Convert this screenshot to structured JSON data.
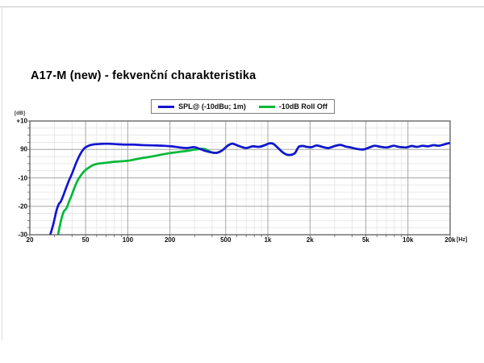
{
  "title": "A17-M (new) - fekvenční charakteristika",
  "chart_data": {
    "type": "line",
    "title": "A17-M (new) - fekvenční charakteristika",
    "legend_position": "top",
    "grid": true,
    "x_axis": {
      "scale": "log",
      "min_hz": 20,
      "max_hz": 20000,
      "unit_label": "[Hz]",
      "ticks": [
        {
          "hz": 20,
          "label": "20"
        },
        {
          "hz": 50,
          "label": "50"
        },
        {
          "hz": 100,
          "label": "100"
        },
        {
          "hz": 200,
          "label": "200"
        },
        {
          "hz": 500,
          "label": "500"
        },
        {
          "hz": 1000,
          "label": "1k"
        },
        {
          "hz": 2000,
          "label": "2k"
        },
        {
          "hz": 5000,
          "label": "5k"
        },
        {
          "hz": 10000,
          "label": "10k"
        },
        {
          "hz": 20000,
          "label": "20k"
        }
      ],
      "minor_ticks_hz": [
        30,
        40,
        60,
        70,
        80,
        90,
        300,
        400,
        600,
        700,
        800,
        900,
        3000,
        4000,
        6000,
        7000,
        8000,
        9000
      ]
    },
    "y_axis": {
      "unit_label": "[dB]",
      "min": 60,
      "max": 100,
      "ticks": [
        {
          "value": 100,
          "label": "+10"
        },
        {
          "value": 90,
          "label": "90"
        },
        {
          "value": 80,
          "label": "-10"
        },
        {
          "value": 70,
          "label": "-20"
        },
        {
          "value": 60,
          "label": "-30"
        }
      ],
      "minor_step_db": 2.5
    },
    "series": [
      {
        "name": "SPL@ (-10dBu; 1m)",
        "color": "#1414d2",
        "points": [
          [
            28,
            60
          ],
          [
            29.5,
            64
          ],
          [
            31,
            68.5
          ],
          [
            32.2,
            70.8
          ],
          [
            33.2,
            71.6
          ],
          [
            34.5,
            73.5
          ],
          [
            36,
            76
          ],
          [
            38,
            79
          ],
          [
            40,
            81.5
          ],
          [
            43,
            85.5
          ],
          [
            46,
            88.5
          ],
          [
            49,
            90.4
          ],
          [
            52,
            91.2
          ],
          [
            56,
            91.7
          ],
          [
            62,
            91.9
          ],
          [
            70,
            92
          ],
          [
            80,
            91.9
          ],
          [
            95,
            91.7
          ],
          [
            110,
            91.7
          ],
          [
            130,
            91.5
          ],
          [
            155,
            91.4
          ],
          [
            180,
            91.3
          ],
          [
            205,
            91.1
          ],
          [
            235,
            90.7
          ],
          [
            265,
            90.5
          ],
          [
            300,
            90.8
          ],
          [
            330,
            90.1
          ],
          [
            375,
            89.2
          ],
          [
            430,
            88.8
          ],
          [
            470,
            89.6
          ],
          [
            520,
            91.4
          ],
          [
            560,
            92
          ],
          [
            630,
            91.1
          ],
          [
            700,
            90.5
          ],
          [
            780,
            91.1
          ],
          [
            860,
            90.9
          ],
          [
            940,
            91.4
          ],
          [
            1020,
            92.1
          ],
          [
            1090,
            92
          ],
          [
            1160,
            90.9
          ],
          [
            1260,
            89.2
          ],
          [
            1360,
            88.2
          ],
          [
            1460,
            88.1
          ],
          [
            1560,
            88.7
          ],
          [
            1660,
            90.9
          ],
          [
            1780,
            91.2
          ],
          [
            1900,
            90.9
          ],
          [
            2050,
            90.8
          ],
          [
            2230,
            91.4
          ],
          [
            2450,
            90.9
          ],
          [
            2700,
            90.5
          ],
          [
            3000,
            91.2
          ],
          [
            3300,
            91.6
          ],
          [
            3600,
            91
          ],
          [
            3900,
            90.7
          ],
          [
            4300,
            90.2
          ],
          [
            4800,
            90
          ],
          [
            5300,
            90.7
          ],
          [
            5800,
            91.3
          ],
          [
            6400,
            90.9
          ],
          [
            7100,
            90.7
          ],
          [
            7900,
            91.3
          ],
          [
            8600,
            90.9
          ],
          [
            9700,
            90.7
          ],
          [
            10600,
            91.2
          ],
          [
            11600,
            90.9
          ],
          [
            12700,
            91.3
          ],
          [
            13900,
            91.1
          ],
          [
            15200,
            91.5
          ],
          [
            16600,
            91.3
          ],
          [
            18200,
            91.8
          ],
          [
            20000,
            92.3
          ]
        ]
      },
      {
        "name": "-10dB Roll Off",
        "color": "#00b838",
        "points": [
          [
            31.8,
            60
          ],
          [
            33.2,
            64.5
          ],
          [
            34.8,
            68
          ],
          [
            36.5,
            69.3
          ],
          [
            38,
            71.5
          ],
          [
            40,
            74.2
          ],
          [
            42,
            77
          ],
          [
            44,
            79.2
          ],
          [
            46.5,
            81
          ],
          [
            49,
            82.4
          ],
          [
            52,
            83.4
          ],
          [
            55.5,
            84.3
          ],
          [
            59,
            84.8
          ],
          [
            64,
            85.1
          ],
          [
            70,
            85.3
          ],
          [
            78,
            85.6
          ],
          [
            88,
            85.8
          ],
          [
            100,
            86
          ],
          [
            115,
            86.6
          ],
          [
            132,
            87.1
          ],
          [
            152,
            87.6
          ],
          [
            175,
            88.2
          ],
          [
            200,
            88.7
          ],
          [
            230,
            89.1
          ],
          [
            265,
            89.5
          ],
          [
            305,
            90
          ],
          [
            350,
            90.2
          ],
          [
            400,
            88.9
          ]
        ],
        "follows_series": 0,
        "follows_from_hz": 430
      }
    ]
  },
  "styles": {
    "grid_major": "#a6a6a6",
    "grid_minor": "#e3e3e3",
    "frame": "#4f4f4f",
    "tick": "#666666"
  }
}
